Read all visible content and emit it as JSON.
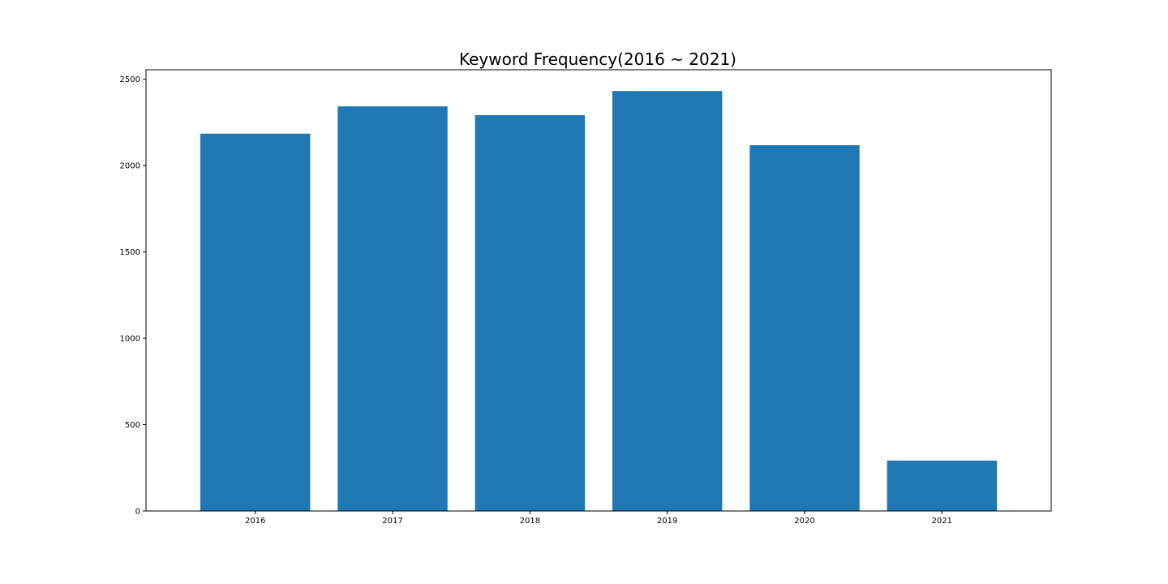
{
  "chart_data": {
    "type": "bar",
    "title": "Keyword Frequency(2016 ~ 2021)",
    "xlabel": "",
    "ylabel": "",
    "categories": [
      "2016",
      "2017",
      "2018",
      "2019",
      "2020",
      "2021"
    ],
    "values": [
      2185,
      2343,
      2292,
      2432,
      2118,
      292
    ],
    "ylim": [
      0,
      2555
    ],
    "yticks": [
      0,
      500,
      1000,
      1500,
      2000,
      2500
    ],
    "grid": false,
    "legend": "none",
    "bar_color": "#1f77b4"
  }
}
